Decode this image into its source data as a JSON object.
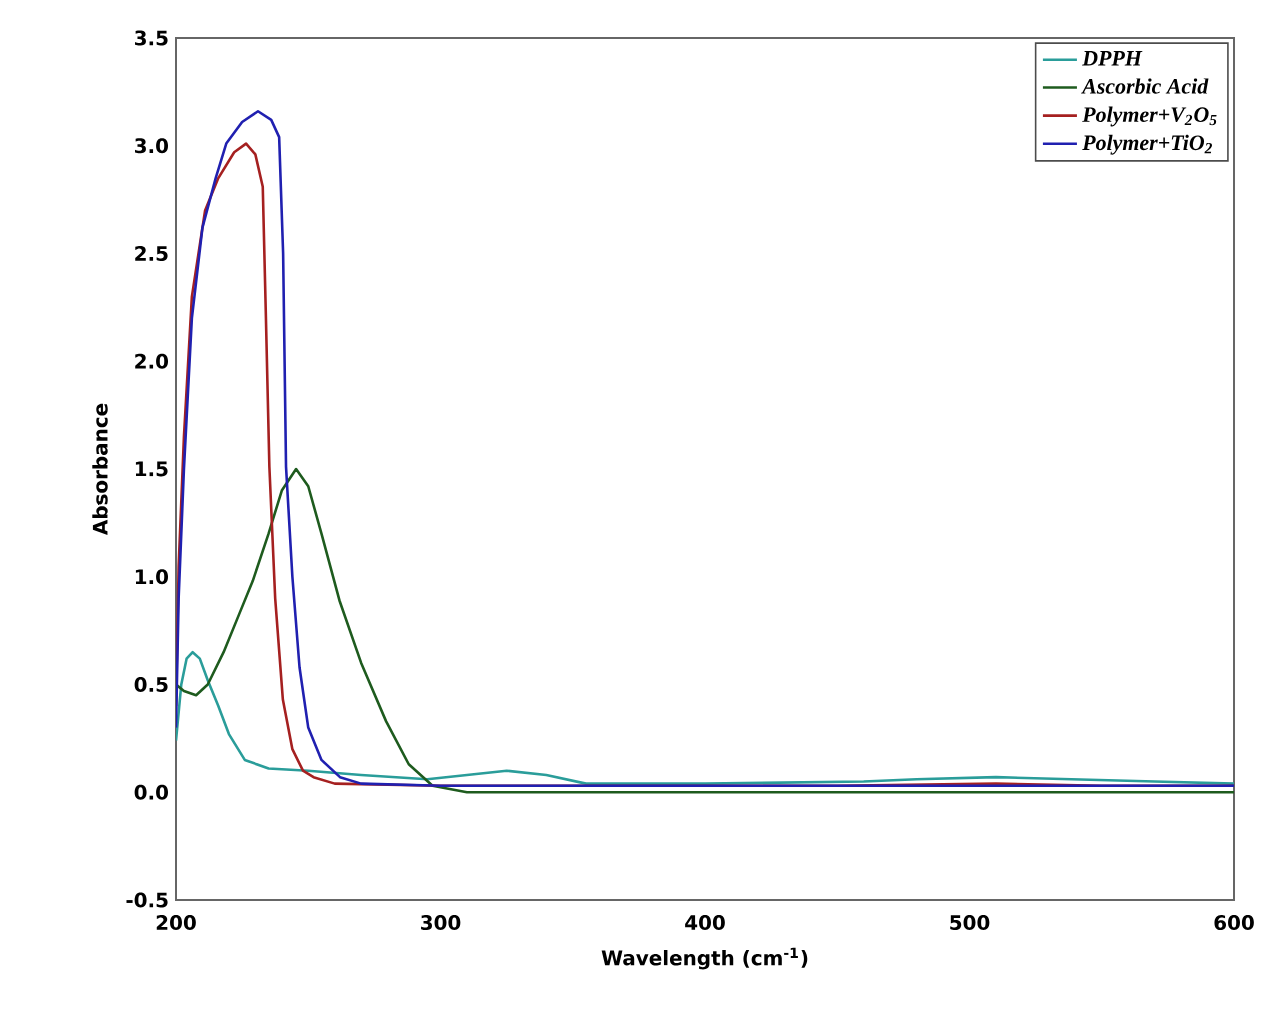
{
  "chart_data": {
    "type": "line",
    "xlabel": "Wavelength (cm$^{-1}$)",
    "ylabel": "Absorbance",
    "xlim": [
      200,
      600
    ],
    "ylim": [
      -0.5,
      3.5
    ],
    "xticks": [
      200,
      300,
      400,
      500,
      600
    ],
    "yticks": [
      -0.5,
      {
        "value": 0,
        "label": "0.0"
      },
      0.5,
      {
        "value": 1,
        "label": "1.0"
      },
      1.5,
      {
        "value": 2,
        "label": "2.0"
      },
      2.5,
      {
        "value": 3,
        "label": "3.0"
      },
      3.5
    ],
    "legend": "top right",
    "series": [
      {
        "name": "DPPH",
        "color": "#2a9d9a",
        "x": [
          200,
          202,
          204,
          206.3,
          209,
          212,
          216,
          220,
          226,
          235,
          250,
          270,
          295,
          310,
          325,
          340,
          355,
          400,
          460,
          480,
          510,
          540,
          570,
          600
        ],
        "values": [
          0.24,
          0.5,
          0.62,
          0.65,
          0.62,
          0.52,
          0.4,
          0.27,
          0.15,
          0.11,
          0.1,
          0.08,
          0.06,
          0.08,
          0.1,
          0.08,
          0.04,
          0.04,
          0.05,
          0.06,
          0.07,
          0.06,
          0.05,
          0.04
        ]
      },
      {
        "name": "Ascorbic Acid",
        "color": "#1e5b1e",
        "x": [
          200,
          203,
          207.6,
          212,
          218,
          224,
          229,
          235,
          240,
          245.4,
          250,
          255,
          261.8,
          270,
          279.4,
          288,
          297,
          310,
          400,
          600
        ],
        "values": [
          0.5,
          0.47,
          0.45,
          0.5,
          0.65,
          0.83,
          0.98,
          1.2,
          1.4,
          1.5,
          1.42,
          1.2,
          0.89,
          0.6,
          0.33,
          0.13,
          0.03,
          0.0,
          0.0,
          0.0
        ]
      },
      {
        "name": "Polymer+V$_{2}$O$_{5}$",
        "color": "#a52020",
        "x": [
          200,
          201,
          203,
          206,
          211,
          216,
          222,
          226.5,
          230,
          232.8,
          234,
          235.3,
          237.5,
          240.4,
          244,
          248,
          252,
          260,
          300,
          450,
          510,
          550,
          600
        ],
        "values": [
          0.4,
          1.05,
          1.65,
          2.3,
          2.7,
          2.85,
          2.97,
          3.01,
          2.96,
          2.81,
          2.2,
          1.51,
          0.9,
          0.43,
          0.2,
          0.1,
          0.07,
          0.04,
          0.03,
          0.03,
          0.04,
          0.03,
          0.03
        ]
      },
      {
        "name": "Polymer+TiO$_{2}$",
        "color": "#2020b0",
        "x": [
          200,
          201,
          203,
          206,
          210,
          215,
          219,
          225,
          231,
          236,
          239,
          240.5,
          241.6,
          244,
          246.7,
          250,
          255,
          262,
          270,
          300,
          400,
          500,
          600
        ],
        "values": [
          0.3,
          0.9,
          1.5,
          2.2,
          2.62,
          2.85,
          3.01,
          3.11,
          3.16,
          3.12,
          3.04,
          2.5,
          1.51,
          1.0,
          0.58,
          0.3,
          0.15,
          0.07,
          0.04,
          0.03,
          0.03,
          0.03,
          0.03
        ]
      }
    ]
  }
}
